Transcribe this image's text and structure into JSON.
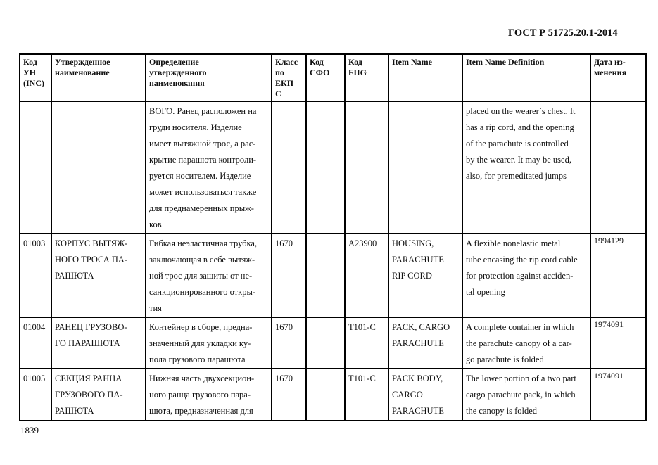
{
  "header": {
    "doc_id": "ГОСТ Р 51725.20.1-2014"
  },
  "footer": {
    "page_number": "1839"
  },
  "table": {
    "columns": [
      "Код\nУН\n(INC)",
      "Утвержденное\nнаименование",
      "Определение\nутвержденного\nнаименования",
      "Класс\nпо\nЕКП\nС",
      "Код\nСФО",
      "Код\nFIIG",
      "Item Name",
      "Item Name Definition",
      "Дата из-\nменения"
    ],
    "rows": [
      {
        "cells": [
          "",
          "",
          "ВОГО. Ранец расположен на\nгруди носителя. Изделие\nимеет вытяжной трос, а рас-\nкрытие парашюта контроли-\nруется носителем. Изделие\nможет использоваться также\nдля преднамеренных прыж-\nков",
          "",
          "",
          "",
          "",
          "placed on the wearer`s chest. It\nhas a rip cord, and the opening\nof the parachute is controlled\nby the wearer. It may be used,\nalso, for premeditated jumps",
          ""
        ]
      },
      {
        "cells": [
          "01003",
          "КОРПУС ВЫТЯЖ-\nНОГО ТРОСА ПА-\nРАШЮТА",
          "Гибкая неэластичная трубка,\nзаключающая в себе вытяж-\nной трос для защиты от не-\nсанкционированного откры-\nтия",
          "1670",
          "",
          "A23900",
          "HOUSING,\nPARACHUTE\nRIP CORD",
          "A flexible nonelastic metal\ntube encasing the rip cord cable\nfor protection against acciden-\ntal opening",
          "1994129"
        ]
      },
      {
        "cells": [
          "01004",
          "РАНЕЦ ГРУЗОВО-\nГО ПАРАШЮТА",
          "Контейнер в сборе, предна-\nзначенный для укладки ку-\nпола грузового парашюта",
          "1670",
          "",
          "T101-C",
          "PACK, CARGO\nPARACHUTE",
          "A complete container in which\nthe parachute canopy of a car-\ngo parachute is folded",
          "1974091"
        ]
      },
      {
        "cells": [
          "01005",
          "СЕКЦИЯ РАНЦА\nГРУЗОВОГО ПА-\nРАШЮТА",
          "Нижняя часть двухсекцион-\nного ранца грузового пара-\nшюта, предназначенная для",
          "1670",
          "",
          "T101-C",
          "PACK BODY,\nCARGO\nPARACHUTE",
          "The lower portion of a two part\ncargo parachute pack, in which\nthe canopy is folded",
          "1974091"
        ]
      }
    ]
  }
}
